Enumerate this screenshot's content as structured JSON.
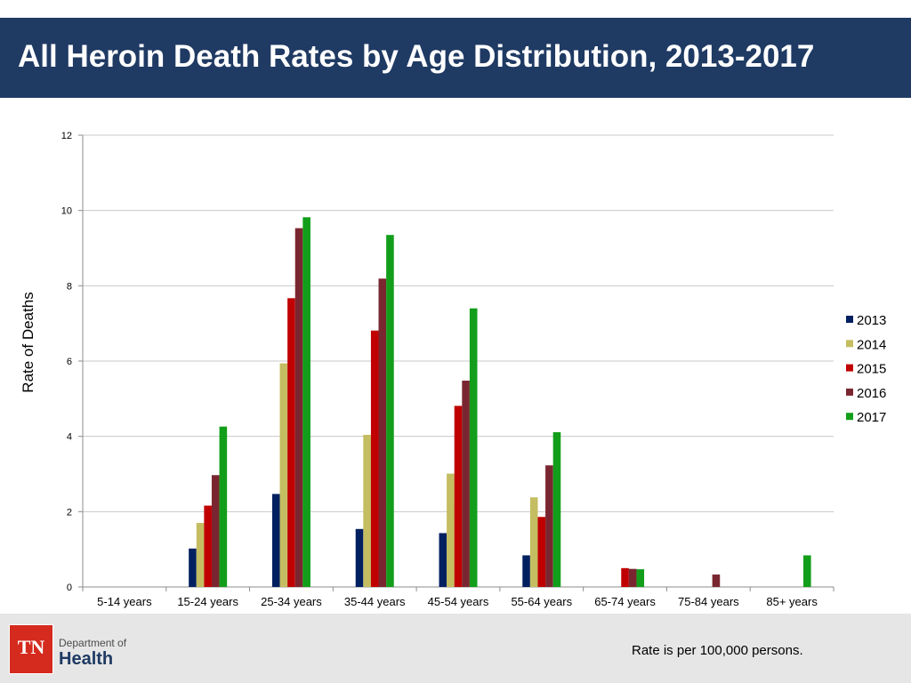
{
  "header": {
    "title": "All Heroin Death Rates by Age Distribution, 2013-2017"
  },
  "chart_data": {
    "type": "bar",
    "title": "",
    "xlabel": "",
    "ylabel": "Rate of Deaths",
    "ylim": [
      0,
      12
    ],
    "yticks": [
      0,
      2,
      4,
      6,
      8,
      10,
      12
    ],
    "grid": true,
    "legend_position": "right",
    "categories": [
      "5-14 years",
      "15-24 years",
      "25-34 years",
      "35-44 years",
      "45-54 years",
      "55-64 years",
      "65-74 years",
      "75-84 years",
      "85+ years"
    ],
    "series": [
      {
        "name": "2013",
        "color": "#002060",
        "values": [
          null,
          1.02,
          2.47,
          1.54,
          1.43,
          0.84,
          null,
          null,
          null
        ]
      },
      {
        "name": "2014",
        "color": "#c4bd61",
        "values": [
          null,
          1.7,
          5.94,
          4.04,
          3.01,
          2.38,
          null,
          null,
          null
        ]
      },
      {
        "name": "2015",
        "color": "#c00000",
        "values": [
          null,
          2.16,
          7.67,
          6.81,
          4.81,
          1.86,
          0.5,
          null,
          null
        ]
      },
      {
        "name": "2016",
        "color": "#7a2630",
        "values": [
          null,
          2.97,
          9.53,
          8.19,
          5.48,
          3.23,
          0.48,
          0.33,
          null
        ]
      },
      {
        "name": "2017",
        "color": "#129e1a",
        "values": [
          null,
          4.26,
          9.82,
          9.35,
          7.4,
          4.11,
          0.47,
          null,
          0.84
        ]
      }
    ]
  },
  "footer": {
    "logo_mark": "TN",
    "logo_dept": "Department of",
    "logo_health": "Health",
    "note": "Rate is per 100,000 persons."
  }
}
